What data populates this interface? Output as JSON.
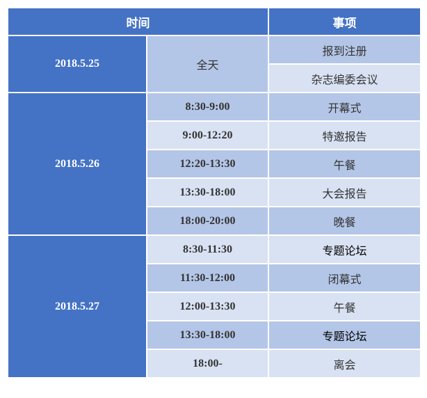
{
  "header": {
    "time": "时间",
    "event": "事项"
  },
  "colors": {
    "header": "#4472C4",
    "row_dark": "#B4C6E7",
    "row_light": "#D9E2F3"
  },
  "days": [
    {
      "date": "2018.5.25",
      "rows": [
        {
          "time": "全天",
          "event": "报到注册"
        },
        {
          "time": "",
          "event": "杂志编委会议"
        }
      ]
    },
    {
      "date": "2018.5.26",
      "rows": [
        {
          "time": "8:30-9:00",
          "event": "开幕式"
        },
        {
          "time": "9:00-12:20",
          "event": "特邀报告"
        },
        {
          "time": "12:20-13:30",
          "event": "午餐"
        },
        {
          "time": "13:30-18:00",
          "event": "大会报告"
        },
        {
          "time": "18:00-20:00",
          "event": "晚餐"
        }
      ]
    },
    {
      "date": "2018.5.27",
      "rows": [
        {
          "time": "8:30-11:30",
          "event": "专题论坛"
        },
        {
          "time": "11:30-12:00",
          "event": "闭幕式"
        },
        {
          "time": "12:00-13:30",
          "event": "午餐"
        },
        {
          "time": "13:30-18:00",
          "event": "专题论坛"
        },
        {
          "time": "18:00-",
          "event": "离会"
        }
      ]
    }
  ]
}
